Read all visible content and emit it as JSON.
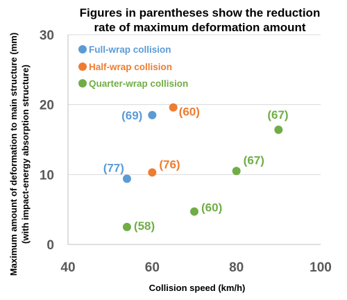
{
  "chart_data": {
    "type": "scatter",
    "title_lines": [
      "Figures in parentheses show the reduction",
      "rate of maximum deformation amount"
    ],
    "xlabel": "Collision speed (km/h)",
    "ylabel_lines": [
      "Maximum amount of deformation to main structure (mm)",
      "(with impact-energy absorption structure)"
    ],
    "xlim": [
      40,
      100
    ],
    "ylim": [
      0,
      30
    ],
    "xticks": [
      "40",
      "60",
      "80",
      "100"
    ],
    "yticks": [
      "0",
      "10",
      "20",
      "30"
    ],
    "grid": "horizontal",
    "legend_position": "top-left",
    "series": [
      {
        "name": "Full-wrap collision",
        "color": "#5b9bd5",
        "points": [
          {
            "x": 60,
            "y": 18.5,
            "label": "(69)"
          },
          {
            "x": 54,
            "y": 9.4,
            "label": "(77)"
          }
        ]
      },
      {
        "name": "Half-wrap collision",
        "color": "#ed7d31",
        "points": [
          {
            "x": 65,
            "y": 19.6,
            "label": "(60)"
          },
          {
            "x": 60,
            "y": 10.3,
            "label": "(76)"
          }
        ]
      },
      {
        "name": "Quarter-wrap collision",
        "color": "#70ad47",
        "points": [
          {
            "x": 90,
            "y": 16.4,
            "label": "(67)"
          },
          {
            "x": 80,
            "y": 10.5,
            "label": "(67)"
          },
          {
            "x": 70,
            "y": 4.7,
            "label": "(60)"
          },
          {
            "x": 54,
            "y": 2.5,
            "label": "(58)"
          }
        ]
      }
    ]
  }
}
